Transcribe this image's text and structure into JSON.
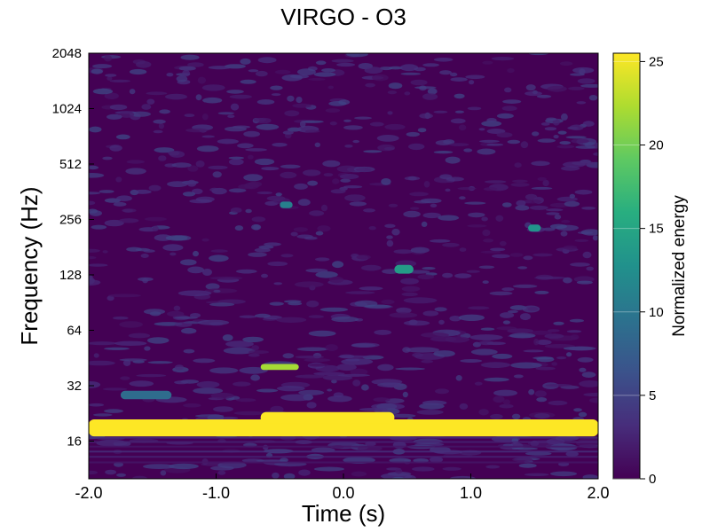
{
  "chart_data": {
    "type": "heatmap",
    "title": "VIRGO - O3",
    "xlabel": "Time (s)",
    "ylabel": "Frequency (Hz)",
    "xlim": [
      -2.0,
      2.0
    ],
    "ylim": [
      10,
      2048
    ],
    "yscale": "log2",
    "x_ticks": [
      "-2.0",
      "-1.0",
      "0.0",
      "1.0",
      "2.0"
    ],
    "y_ticks": [
      "16",
      "32",
      "64",
      "128",
      "256",
      "512",
      "1024",
      "2048"
    ],
    "colorbar": {
      "label": "Normalized energy",
      "range": [
        0,
        25.5
      ],
      "ticks": [
        "0",
        "5",
        "10",
        "15",
        "20",
        "25"
      ],
      "colormap": "viridis"
    },
    "features": [
      {
        "t_start": -2.0,
        "t_end": 2.0,
        "f_low": 17,
        "f_high": 21,
        "energy": 25.5
      },
      {
        "t_start": -0.65,
        "t_end": 0.4,
        "f_low": 20,
        "f_high": 23,
        "energy": 25.5
      },
      {
        "t_start": -0.65,
        "t_end": -0.35,
        "f_low": 39,
        "f_high": 42,
        "energy": 22
      },
      {
        "t_start": -1.75,
        "t_end": -1.35,
        "f_low": 27,
        "f_high": 30,
        "energy": 9
      },
      {
        "t_start": 0.4,
        "t_end": 0.55,
        "f_low": 130,
        "f_high": 145,
        "energy": 14
      },
      {
        "t_start": 1.45,
        "t_end": 1.55,
        "f_low": 220,
        "f_high": 240,
        "energy": 13
      },
      {
        "t_start": -0.5,
        "t_end": -0.4,
        "f_low": 295,
        "f_high": 320,
        "energy": 11
      }
    ]
  }
}
